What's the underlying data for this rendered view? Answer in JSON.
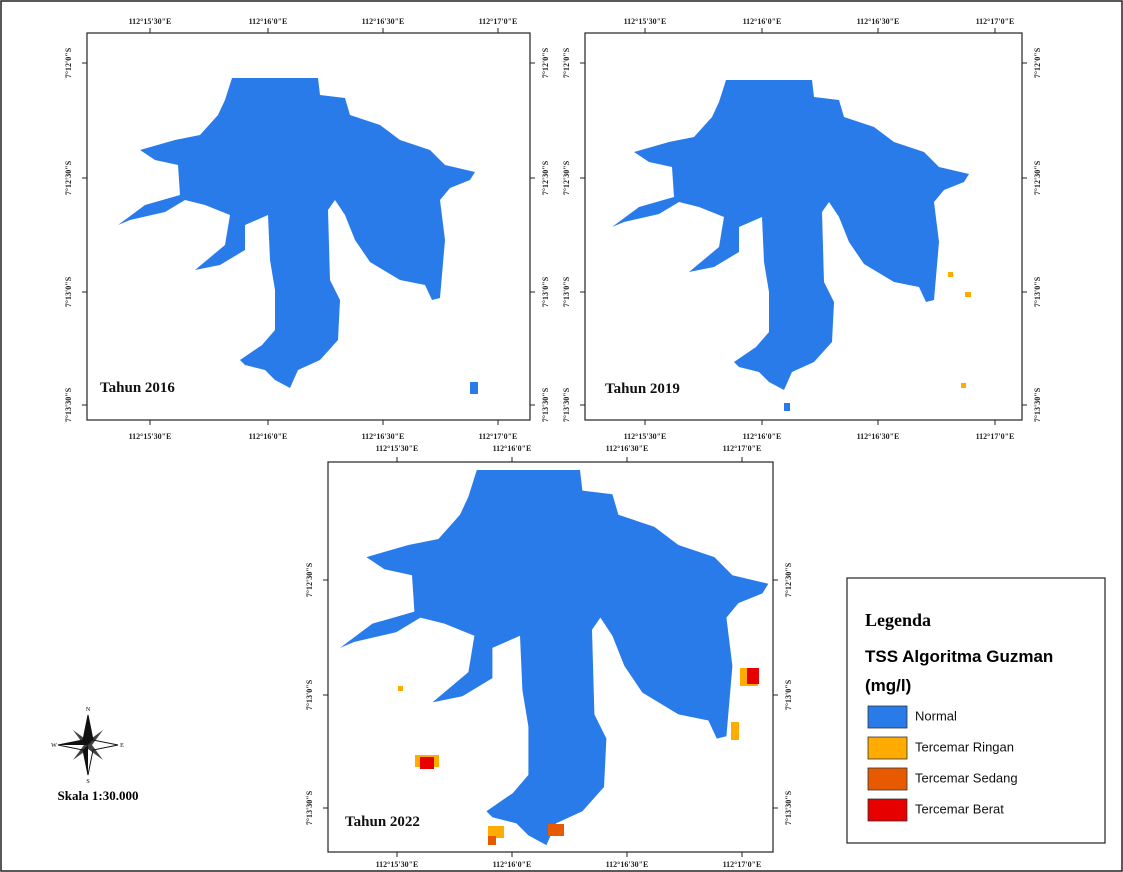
{
  "panels": [
    {
      "year_label": "Tahun 2016",
      "ticks": {
        "top": [
          "112°15'30\"E",
          "112°16'0\"E",
          "112°16'30\"E",
          "112°17'0\"E"
        ],
        "bottom": [
          "112°15'30\"E",
          "112°16'0\"E",
          "112°16'30\"E",
          "112°17'0\"E"
        ],
        "left": [
          "7°12'0\"S",
          "7°12'30\"S",
          "7°13'0\"S",
          "7°13'30\"S"
        ],
        "right": [
          "7°12'0\"S",
          "7°12'30\"S",
          "7°13'0\"S",
          "7°13'30\"S"
        ]
      }
    },
    {
      "year_label": "Tahun 2019",
      "ticks": {
        "top": [
          "112°15'30\"E",
          "112°16'0\"E",
          "112°16'30\"E",
          "112°17'0\"E"
        ],
        "bottom": [
          "112°15'30\"E",
          "112°16'0\"E",
          "112°16'30\"E",
          "112°17'0\"E"
        ],
        "left": [
          "7°12'0\"S",
          "7°12'30\"S",
          "7°13'0\"S",
          "7°13'30\"S"
        ],
        "right": [
          "7°12'0\"S",
          "7°12'30\"S",
          "7°13'0\"S",
          "7°13'30\"S"
        ]
      }
    },
    {
      "year_label": "Tahun 2022",
      "ticks": {
        "top": [
          "112°15'30\"E",
          "112°16'0\"E",
          "112°16'30\"E",
          "112°17'0\"E"
        ],
        "bottom": [
          "112°15'30\"E",
          "112°16'0\"E",
          "112°16'30\"E",
          "112°17'0\"E"
        ],
        "left": [
          "7°12'30\"S",
          "7°13'0\"S",
          "7°13'30\"S"
        ],
        "right": [
          "7°12'30\"S",
          "7°13'0\"S",
          "7°13'30\"S"
        ]
      }
    }
  ],
  "compass": {
    "n": "N",
    "s": "S",
    "e": "E",
    "w": "W"
  },
  "scale": "Skala 1:30.000",
  "legend": {
    "title": "Legenda",
    "heading": "TSS Algoritma Guzman",
    "unit": "(mg/l)",
    "items": [
      {
        "label": "Normal",
        "color": "#2a7bea"
      },
      {
        "label": "Tercemar Ringan",
        "color": "#ffab00"
      },
      {
        "label": "Tercemar Sedang",
        "color": "#e85a00"
      },
      {
        "label": "Tercemar Berat",
        "color": "#e60000"
      }
    ]
  }
}
